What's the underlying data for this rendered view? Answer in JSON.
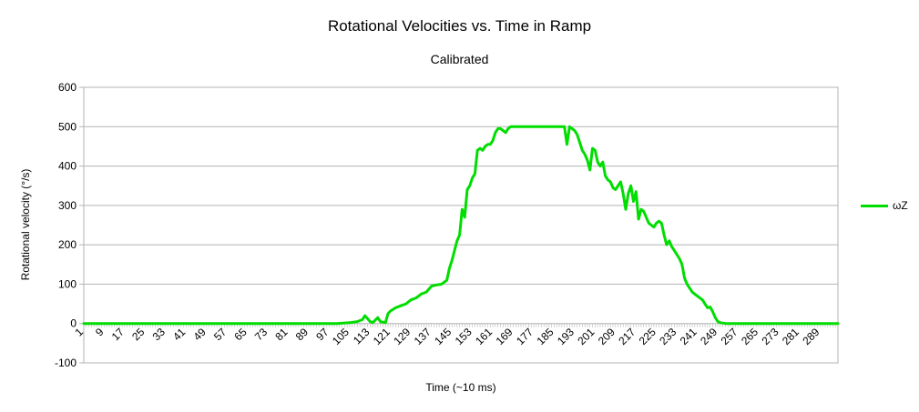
{
  "chart_data": {
    "type": "line",
    "title": "Rotational Velocities vs. Time in Ramp",
    "subtitle": "Calibrated",
    "xlabel": "Time (~10 ms)",
    "ylabel": "Rotational velocity (°/s)",
    "ylim": [
      -100,
      600
    ],
    "yticks": [
      -100,
      0,
      100,
      200,
      300,
      400,
      500,
      600
    ],
    "xlim": [
      1,
      296
    ],
    "xtick_step": 8,
    "grid": true,
    "legend_position": "right",
    "series": [
      {
        "name": "ωZ",
        "color": "#00dd00",
        "x": [
          1,
          10,
          20,
          30,
          40,
          50,
          60,
          70,
          80,
          90,
          100,
          105,
          108,
          110,
          111,
          113,
          114,
          116,
          117,
          119,
          120,
          121,
          123,
          125,
          127,
          129,
          131,
          133,
          135,
          137,
          139,
          141,
          143,
          144,
          145,
          147,
          148,
          149,
          150,
          151,
          152,
          153,
          154,
          155,
          156,
          157,
          158,
          159,
          160,
          161,
          162,
          163,
          164,
          165,
          166,
          167,
          168,
          170,
          175,
          180,
          185,
          188,
          189,
          190,
          191,
          192,
          193,
          194,
          195,
          196,
          197,
          198,
          199,
          200,
          201,
          202,
          203,
          204,
          205,
          206,
          207,
          208,
          209,
          210,
          211,
          212,
          213,
          214,
          215,
          216,
          217,
          218,
          219,
          220,
          221,
          222,
          223,
          224,
          225,
          226,
          227,
          228,
          229,
          230,
          231,
          232,
          233,
          234,
          235,
          236,
          237,
          238,
          239,
          240,
          241,
          242,
          243,
          244,
          245,
          246,
          247,
          248,
          249,
          250,
          252,
          260,
          270,
          280,
          290,
          296
        ],
        "y": [
          0,
          0,
          0,
          0,
          0,
          0,
          0,
          0,
          0,
          0,
          0,
          2,
          5,
          10,
          20,
          5,
          2,
          15,
          5,
          2,
          25,
          32,
          40,
          45,
          50,
          60,
          65,
          75,
          80,
          95,
          98,
          100,
          110,
          140,
          160,
          210,
          225,
          290,
          270,
          340,
          350,
          370,
          380,
          440,
          445,
          440,
          450,
          455,
          455,
          465,
          485,
          495,
          495,
          490,
          485,
          495,
          500,
          500,
          500,
          500,
          500,
          500,
          500,
          455,
          500,
          495,
          490,
          480,
          460,
          440,
          430,
          415,
          390,
          445,
          440,
          410,
          400,
          410,
          375,
          365,
          360,
          345,
          340,
          350,
          360,
          330,
          290,
          330,
          350,
          310,
          335,
          265,
          290,
          285,
          270,
          255,
          250,
          245,
          255,
          260,
          255,
          225,
          200,
          210,
          195,
          185,
          175,
          165,
          150,
          115,
          100,
          90,
          80,
          75,
          70,
          65,
          60,
          50,
          40,
          42,
          30,
          15,
          5,
          2,
          0,
          0,
          0,
          0,
          0,
          0
        ]
      }
    ]
  }
}
